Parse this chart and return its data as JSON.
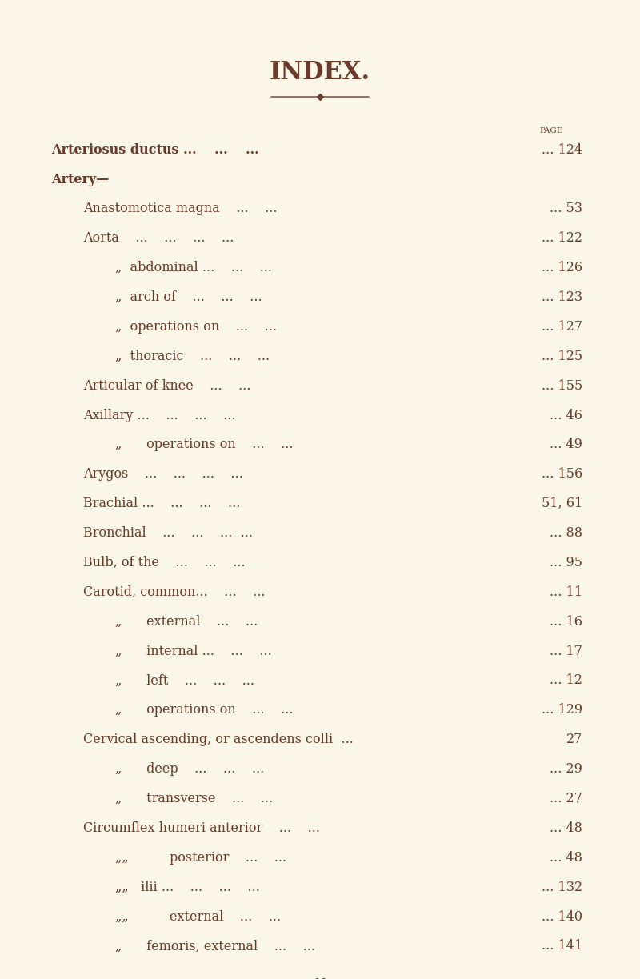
{
  "bg_color": "#faf6e8",
  "text_color": "#6b3a2a",
  "title": "INDEX.",
  "page_label": "PAGE",
  "footer": "N",
  "entries": [
    {
      "indent": 0,
      "bold": true,
      "smallcaps": true,
      "text": "Arteriosus ductus ...",
      "dots": "...          ...",
      "page": "... 124"
    },
    {
      "indent": 0,
      "bold": true,
      "smallcaps": true,
      "text": "Artery—",
      "dots": "",
      "page": ""
    },
    {
      "indent": 1,
      "bold": false,
      "smallcaps": false,
      "text": "Anastomotica magna",
      "dots": "...          ...",
      "page": "... 53"
    },
    {
      "indent": 1,
      "bold": false,
      "smallcaps": false,
      "text": "Aorta",
      "dots": "...     ...          ...",
      "page": "... 122"
    },
    {
      "indent": 2,
      "bold": false,
      "smallcaps": false,
      "text": "„   abdominal ...",
      "dots": "...          ...",
      "page": "... 126"
    },
    {
      "indent": 2,
      "bold": false,
      "smallcaps": false,
      "text": "„   arch of",
      "dots": "...          ...",
      "page": "... 123"
    },
    {
      "indent": 2,
      "bold": false,
      "smallcaps": false,
      "text": "„   operations on",
      "dots": "...          ...",
      "page": "... 127"
    },
    {
      "indent": 2,
      "bold": false,
      "smallcaps": false,
      "text": "„   thoracic",
      "dots": "...          ...",
      "page": "... 125"
    },
    {
      "indent": 1,
      "bold": false,
      "smallcaps": false,
      "text": "Articular of knee",
      "dots": "...          ...",
      "page": "... 155"
    },
    {
      "indent": 1,
      "bold": false,
      "smallcaps": false,
      "text": "Axillary ...",
      "dots": "...          ...",
      "page": "... 46"
    },
    {
      "indent": 2,
      "bold": false,
      "smallcaps": false,
      "text": "„       operations on",
      "dots": "...          ...",
      "page": "... 49"
    },
    {
      "indent": 1,
      "bold": false,
      "smallcaps": false,
      "text": "Arygos",
      "dots": "...     ...          ...",
      "page": "... 156"
    },
    {
      "indent": 1,
      "bold": false,
      "smallcaps": false,
      "text": "Brachial ...",
      "dots": "...          ...",
      "page": "51, 61"
    },
    {
      "indent": 1,
      "bold": false,
      "smallcaps": false,
      "text": "Bronchial",
      "dots": "...     ...          ...",
      "page": "... 88"
    },
    {
      "indent": 1,
      "bold": false,
      "smallcaps": false,
      "text": "Bulb, of the",
      "dots": "...          ...",
      "page": "... 95"
    },
    {
      "indent": 1,
      "bold": false,
      "smallcaps": false,
      "text": "Carotid, common...",
      "dots": "...          ...",
      "page": "... 11"
    },
    {
      "indent": 2,
      "bold": false,
      "smallcaps": false,
      "text": "„       external",
      "dots": "...          ...",
      "page": "... 16"
    },
    {
      "indent": 2,
      "bold": false,
      "smallcaps": false,
      "text": "„       internal ...",
      "dots": "...          ...",
      "page": "... 17"
    },
    {
      "indent": 2,
      "bold": false,
      "smallcaps": false,
      "text": "„       left",
      "dots": "...          ...",
      "page": "... 12"
    },
    {
      "indent": 2,
      "bold": false,
      "smallcaps": false,
      "text": "„       operations on ...",
      "dots": "...          ...",
      "page": "... 129"
    },
    {
      "indent": 1,
      "bold": false,
      "smallcaps": false,
      "text": "Cervical ascending, or ascendens colli",
      "dots": "...",
      "page": "27"
    },
    {
      "indent": 2,
      "bold": false,
      "smallcaps": false,
      "text": "„       deep",
      "dots": "...          ...",
      "page": "... 29"
    },
    {
      "indent": 2,
      "bold": false,
      "smallcaps": false,
      "text": "„       transverse",
      "dots": "...     ...",
      "page": "... 27"
    },
    {
      "indent": 1,
      "bold": false,
      "smallcaps": false,
      "text": "Circumflex humeri anterior",
      "dots": "...          ...",
      "page": "... 48"
    },
    {
      "indent": 2,
      "bold": false,
      "smallcaps": false,
      "text": "„„         posterior",
      "dots": "...          ...",
      "page": "... 48"
    },
    {
      "indent": 2,
      "bold": false,
      "smallcaps": false,
      "text": "„„   ilii ...",
      "dots": "...          ...",
      "page": "... 132"
    },
    {
      "indent": 2,
      "bold": false,
      "smallcaps": false,
      "text": "„„         external",
      "dots": "...          ...",
      "page": "... 140"
    },
    {
      "indent": 2,
      "bold": false,
      "smallcaps": false,
      "text": "„       femoris, external",
      "dots": "...          ...",
      "page": "... 141"
    }
  ],
  "figsize": [
    8.0,
    12.24
  ],
  "dpi": 100
}
